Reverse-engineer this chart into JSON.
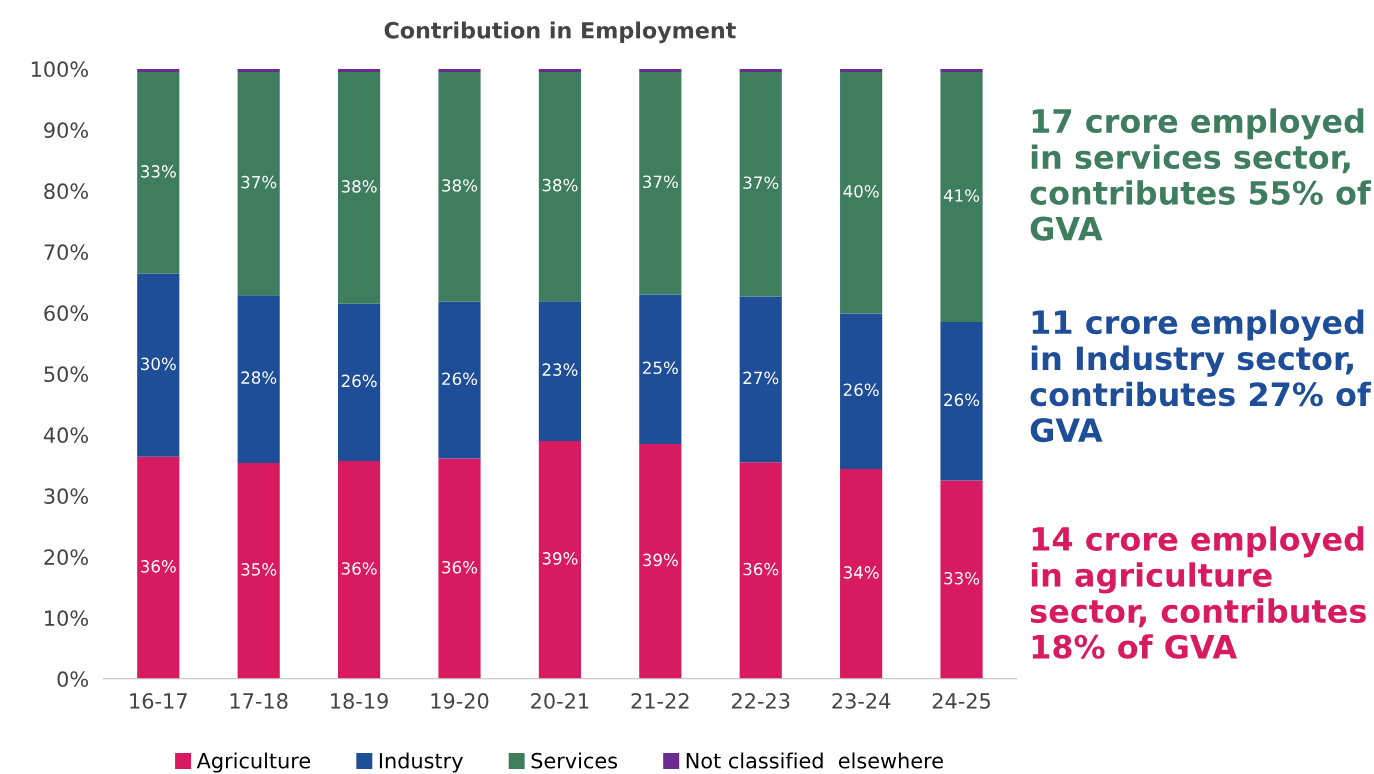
{
  "chart_data": {
    "type": "bar",
    "title": "Contribution in Employment",
    "stacked": true,
    "categories": [
      "16-17",
      "17-18",
      "18-19",
      "19-20",
      "20-21",
      "21-22",
      "22-23",
      "23-24",
      "24-25"
    ],
    "series": [
      {
        "name": "Agriculture",
        "color": "#d81b60",
        "values": [
          36.4,
          35.4,
          35.7,
          36.1,
          39.0,
          38.5,
          35.5,
          34.4,
          32.5
        ],
        "value_labels": [
          "36%",
          "35%",
          "36%",
          "36%",
          "39%",
          "39%",
          "36%",
          "34%",
          "33%"
        ]
      },
      {
        "name": "Industry",
        "color": "#1f4e99",
        "values": [
          30.0,
          27.5,
          25.8,
          25.7,
          22.9,
          24.5,
          27.2,
          25.5,
          26.0
        ],
        "value_labels": [
          "30%",
          "28%",
          "26%",
          "26%",
          "23%",
          "25%",
          "27%",
          "26%",
          "26%"
        ]
      },
      {
        "name": "Services",
        "color": "#3f7d5f",
        "values": [
          33.1,
          36.6,
          38.0,
          37.7,
          37.6,
          36.5,
          36.8,
          39.6,
          41.0
        ],
        "value_labels": [
          "33%",
          "37%",
          "38%",
          "38%",
          "38%",
          "37%",
          "37%",
          "40%",
          "41%"
        ]
      },
      {
        "name": "Not classified  elsewhere",
        "color": "#6a2c91",
        "values": [
          0.5,
          0.5,
          0.5,
          0.5,
          0.5,
          0.5,
          0.5,
          0.5,
          0.5
        ]
      }
    ],
    "ylim": [
      0,
      100
    ],
    "yticks": [
      {
        "value": 0,
        "label": "0%"
      },
      {
        "value": 10,
        "label": "10%"
      },
      {
        "value": 20,
        "label": "20%"
      },
      {
        "value": 30,
        "label": "30%"
      },
      {
        "value": 40,
        "label": "40%"
      },
      {
        "value": 50,
        "label": "50%"
      },
      {
        "value": 60,
        "label": "60%"
      },
      {
        "value": 70,
        "label": "70%"
      },
      {
        "value": 80,
        "label": "80%"
      },
      {
        "value": 90,
        "label": "90%"
      },
      {
        "value": 100,
        "label": "100%"
      }
    ],
    "grid": false,
    "legend": "bottom",
    "annotations": [
      "17 crore employed in services sector, contributes 55% of GVA",
      "11 crore employed in Industry sector, contributes 27% of GVA",
      "14 crore employed in agriculture sector, contributes 18% of GVA"
    ]
  }
}
